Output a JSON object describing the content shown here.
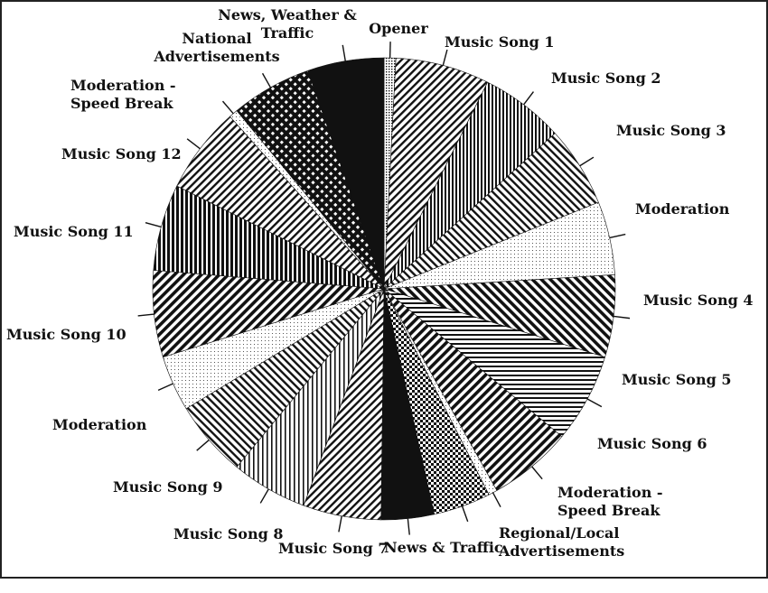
{
  "chart_data": {
    "type": "pie",
    "title": "",
    "labels": [
      "Opener",
      "Music Song 1",
      "Music Song 2",
      "Music Song 3",
      "Moderation",
      "Music Song 4",
      "Music Song 5",
      "Music Song 6",
      "Moderation -\nSpeed Break",
      "Regional/Local\nAdvertisements",
      "News & Traffic",
      "Music Song 7",
      "Music Song 8",
      "Music Song 9",
      "Moderation",
      "Music Song 10",
      "Music Song 11",
      "Music Song 12",
      "Moderation -\nSpeed Break",
      "National\nAdvertisements",
      "News, Weather &\nTraffic"
    ],
    "values": [
      0.8,
      6.4,
      5.7,
      5.5,
      5.0,
      5.6,
      6.1,
      5.7,
      0.6,
      3.9,
      3.6,
      5.3,
      5.2,
      5.2,
      3.8,
      5.9,
      5.9,
      5.9,
      0.6,
      5.5,
      5.2
    ],
    "patterns": [
      "dense-dots",
      "diag-left",
      "vert-dense",
      "diag-right",
      "fine-dots",
      "diag-right-bold",
      "horiz-lines",
      "diag-left-bold",
      "fine-dots",
      "checker",
      "solid-black",
      "diag-left",
      "vert-lines",
      "diag-right",
      "fine-dots",
      "diag-left-bold",
      "vert-bold",
      "diag-left",
      "fine-dots",
      "diamond-check",
      "solid-black"
    ],
    "colors": {
      "ink": "#111111",
      "background": "#ffffff"
    }
  }
}
